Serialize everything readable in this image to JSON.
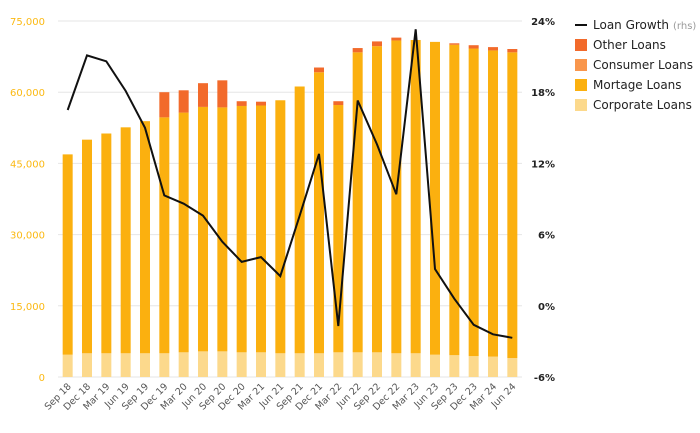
{
  "chart_data": {
    "type": "bar",
    "categories": [
      "Sep 18",
      "Dec 18",
      "Mar 19",
      "Jun 19",
      "Sep 19",
      "Dec 19",
      "Mar 20",
      "Jun 20",
      "Sep 20",
      "Dec 20",
      "Mar 21",
      "Jun 21",
      "Sep 21",
      "Dec 21",
      "Mar 22",
      "Jun 22",
      "Sep 22",
      "Dec 22",
      "Mar 23",
      "Jun 23",
      "Sep 23",
      "Dec 23",
      "Mar 24",
      "Jun 24"
    ],
    "left_axis": {
      "ticks": [
        "0",
        "15,000",
        "30,000",
        "45,000",
        "60,000",
        "75,000"
      ],
      "ylim": [
        0,
        75000
      ],
      "color": "#fbb913"
    },
    "right_axis": {
      "ticks": [
        "-6%",
        "0%",
        "6%",
        "12%",
        "18%",
        "24%"
      ],
      "ylim": [
        -6,
        24
      ]
    },
    "grid": true,
    "legend_position": "top-right",
    "series": [
      {
        "name": "Corporate Loans",
        "kind": "stacked-bar",
        "color": "#fcd98c",
        "values": [
          4700,
          5000,
          5000,
          5000,
          5000,
          5000,
          5200,
          5400,
          5400,
          5200,
          5200,
          5000,
          5000,
          5000,
          5200,
          5200,
          5200,
          5000,
          5000,
          4700,
          4600,
          4400,
          4300,
          4000
        ]
      },
      {
        "name": "Mortage Loans",
        "kind": "stacked-bar",
        "color": "#fbb00f",
        "values": [
          42200,
          45000,
          46300,
          47600,
          48900,
          49700,
          50500,
          51500,
          51400,
          51900,
          52000,
          53300,
          56200,
          59200,
          52100,
          63200,
          64500,
          65900,
          66000,
          65900,
          65400,
          64800,
          64500,
          64400
        ]
      },
      {
        "name": "Consumer Loans",
        "kind": "stacked-bar",
        "color": "#f9964c",
        "values": [
          0,
          0,
          0,
          0,
          0,
          0,
          0,
          0,
          0,
          0,
          0,
          0,
          0,
          0,
          0,
          0,
          0,
          0,
          0,
          0,
          0,
          0,
          0,
          0
        ]
      },
      {
        "name": "Other Loans",
        "kind": "stacked-bar",
        "color": "#f26a2b",
        "values": [
          0,
          0,
          0,
          0,
          0,
          5300,
          4700,
          5000,
          5700,
          1000,
          800,
          0,
          0,
          1000,
          800,
          900,
          1000,
          600,
          0,
          0,
          300,
          700,
          700,
          700
        ]
      },
      {
        "name": "Loan Growth",
        "suffix": "(rhs)",
        "kind": "line",
        "axis": "right",
        "color": "#111111",
        "values": [
          16.5,
          21.1,
          20.6,
          18.1,
          15.0,
          9.3,
          8.6,
          7.6,
          5.4,
          3.7,
          4.1,
          2.5,
          7.6,
          12.8,
          -1.7,
          17.3,
          13.6,
          9.4,
          23.3,
          3.1,
          0.6,
          -1.6,
          -2.4,
          -2.7
        ]
      }
    ]
  }
}
